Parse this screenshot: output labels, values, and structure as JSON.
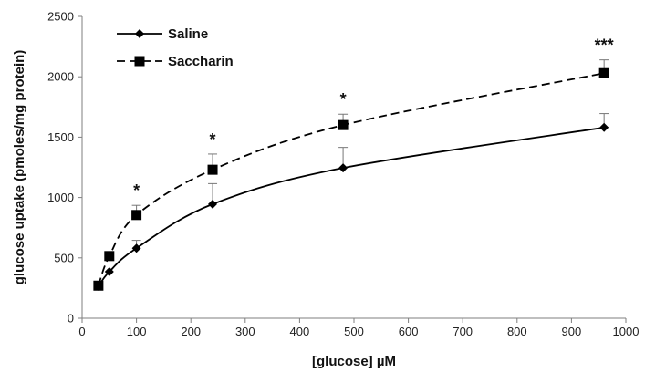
{
  "chart_data": {
    "type": "line",
    "xlabel": "[glucose] µM",
    "ylabel": "glucose uptake (pmoles/mg protein)",
    "xlim": [
      0,
      1000
    ],
    "ylim": [
      0,
      2500
    ],
    "x_ticks": [
      0,
      100,
      200,
      300,
      400,
      500,
      600,
      700,
      800,
      900,
      1000
    ],
    "y_ticks": [
      0,
      500,
      1000,
      1500,
      2000,
      2500
    ],
    "grid": false,
    "legend_position": "top-left",
    "series": [
      {
        "name": "Saline",
        "marker": "diamond",
        "line_style": "solid",
        "color": "#000000",
        "x": [
          30,
          50,
          100,
          240,
          480,
          960
        ],
        "y": [
          265,
          385,
          580,
          945,
          1245,
          1580
        ],
        "error": [
          0,
          0,
          65,
          170,
          170,
          115
        ]
      },
      {
        "name": "Saccharin",
        "marker": "square",
        "line_style": "dashed",
        "color": "#000000",
        "x": [
          30,
          50,
          100,
          240,
          480,
          960
        ],
        "y": [
          270,
          515,
          855,
          1230,
          1600,
          2030
        ],
        "error": [
          0,
          0,
          80,
          130,
          90,
          110
        ]
      }
    ],
    "annotations": [
      {
        "text": "*",
        "x": 100
      },
      {
        "text": "*",
        "x": 240
      },
      {
        "text": "*",
        "x": 480
      },
      {
        "text": "***",
        "x": 960
      }
    ]
  }
}
